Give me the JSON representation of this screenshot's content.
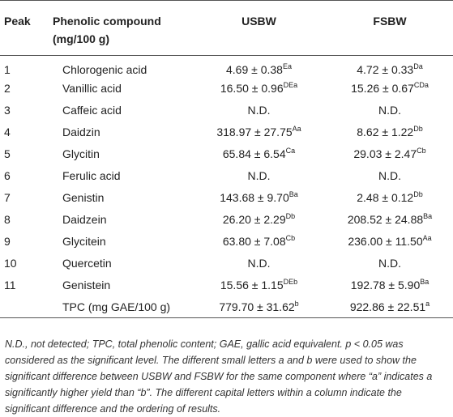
{
  "table": {
    "headers": {
      "peak": "Peak",
      "compound": "Phenolic compound (mg/100 g)",
      "usbw": "USBW",
      "fsbw": "FSBW"
    },
    "rows": [
      {
        "peak": "1",
        "name": "Chlorogenic acid",
        "usbw": "4.69 ± 0.38",
        "usbw_sup": "Ea",
        "fsbw": "4.72 ± 0.33",
        "fsbw_sup": "Da"
      },
      {
        "peak": "2",
        "name": "Vanillic acid",
        "usbw": "16.50 ± 0.96",
        "usbw_sup": "DEa",
        "fsbw": "15.26 ± 0.67",
        "fsbw_sup": "CDa"
      },
      {
        "peak": "3",
        "name": "Caffeic acid",
        "usbw": "N.D.",
        "usbw_sup": "",
        "fsbw": "N.D.",
        "fsbw_sup": ""
      },
      {
        "peak": "4",
        "name": "Daidzin",
        "usbw": "318.97 ± 27.75",
        "usbw_sup": "Aa",
        "fsbw": "8.62 ± 1.22",
        "fsbw_sup": "Db"
      },
      {
        "peak": "5",
        "name": "Glycitin",
        "usbw": "65.84 ± 6.54",
        "usbw_sup": "Ca",
        "fsbw": "29.03 ± 2.47",
        "fsbw_sup": "Cb"
      },
      {
        "peak": "6",
        "name": "Ferulic acid",
        "usbw": "N.D.",
        "usbw_sup": "",
        "fsbw": "N.D.",
        "fsbw_sup": ""
      },
      {
        "peak": "7",
        "name": "Genistin",
        "usbw": "143.68 ± 9.70",
        "usbw_sup": "Ba",
        "fsbw": "2.48 ± 0.12",
        "fsbw_sup": "Db"
      },
      {
        "peak": "8",
        "name": "Daidzein",
        "usbw": "26.20 ± 2.29",
        "usbw_sup": "Db",
        "fsbw": "208.52 ± 24.88",
        "fsbw_sup": "Ba"
      },
      {
        "peak": "9",
        "name": "Glycitein",
        "usbw": "63.80 ± 7.08",
        "usbw_sup": "Cb",
        "fsbw": "236.00 ± 11.50",
        "fsbw_sup": "Aa"
      },
      {
        "peak": "10",
        "name": "Quercetin",
        "usbw": "N.D.",
        "usbw_sup": "",
        "fsbw": "N.D.",
        "fsbw_sup": ""
      },
      {
        "peak": "11",
        "name": "Genistein",
        "usbw": "15.56 ± 1.15",
        "usbw_sup": "DEb",
        "fsbw": "192.78 ± 5.90",
        "fsbw_sup": "Ba"
      },
      {
        "peak": "",
        "name": "TPC (mg GAE/100 g)",
        "usbw": "779.70 ± 31.62",
        "usbw_sup": "b",
        "fsbw": "922.86 ± 22.51",
        "fsbw_sup": "a"
      }
    ]
  },
  "footnote": "N.D., not detected; TPC, total phenolic content; GAE, gallic acid equivalent. p < 0.05 was considered as the significant level. The different small letters a and b were used to show the significant difference between USBW and FSBW for the same component where “a” indicates a significantly higher yield than “b”. The different capital letters within a column indicate the significant difference and the ordering of results."
}
